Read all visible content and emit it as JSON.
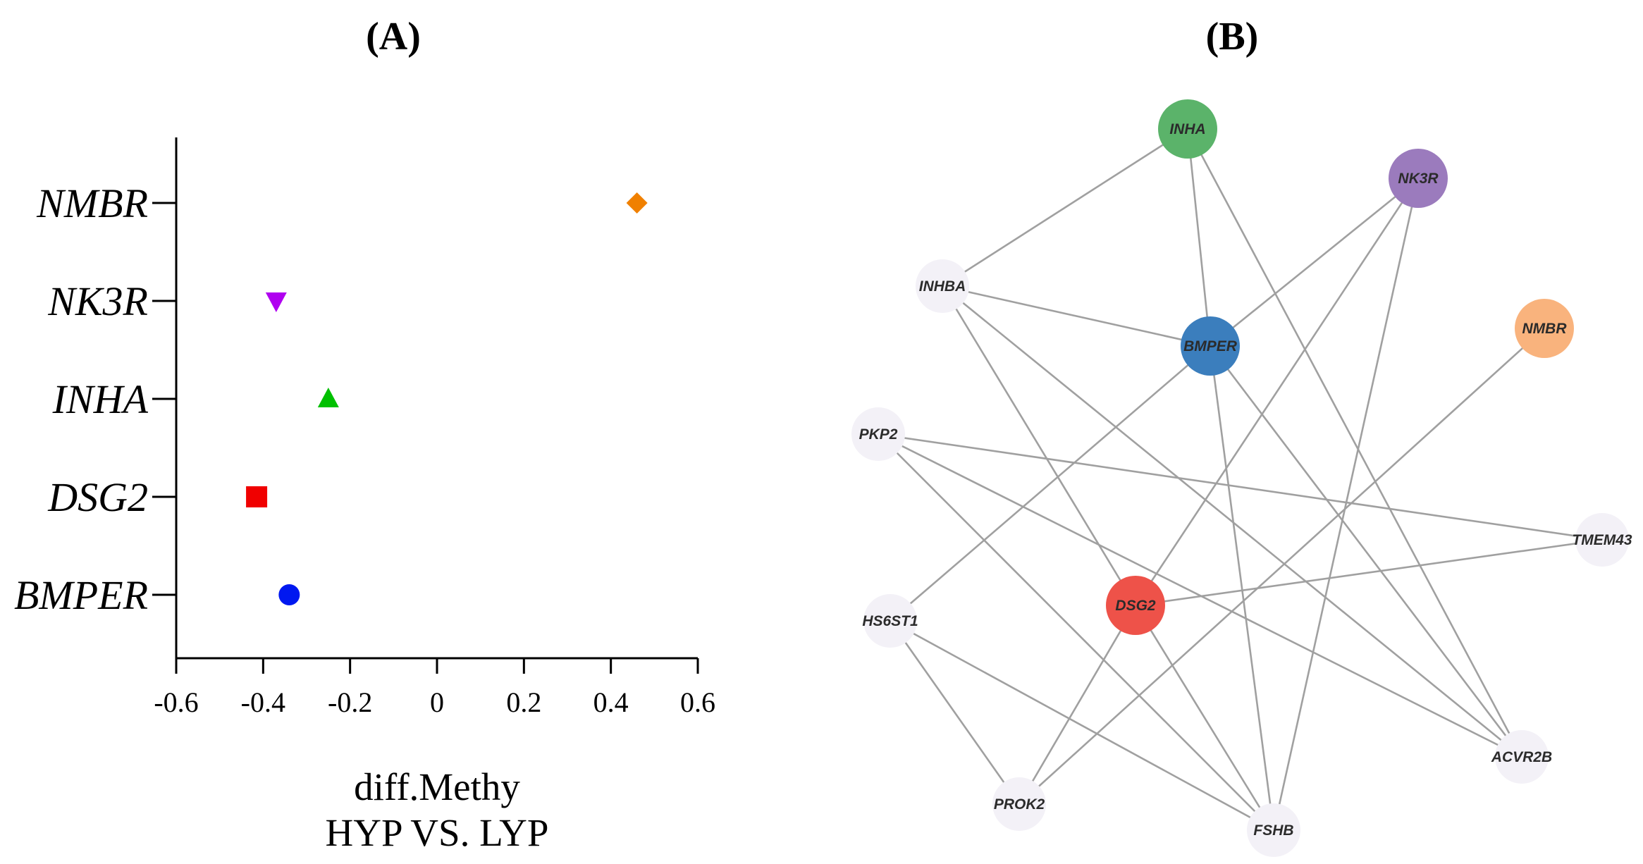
{
  "panel_a": {
    "label": "(A)"
  },
  "panel_b": {
    "label": "(B)"
  },
  "chart_data": [
    {
      "type": "scatter",
      "title": "",
      "categories": [
        "BMPER",
        "DSG2",
        "INHA",
        "NK3R",
        "NMBR"
      ],
      "values": [
        -0.34,
        -0.415,
        -0.25,
        -0.37,
        0.46
      ],
      "markers": [
        "circle",
        "square",
        "triangle-up",
        "triangle-down",
        "diamond"
      ],
      "colors": [
        "#0018f0",
        "#f00000",
        "#00c000",
        "#b000f0",
        "#f08000"
      ],
      "xlabel": "diff.Methy",
      "xlabel_line2": "HYP VS. LYP",
      "ylabel": "",
      "xlim": [
        -0.6,
        0.6
      ],
      "xticks": [
        "-0.6",
        "-0.4",
        "-0.2",
        "0",
        "0.2",
        "0.4",
        "0.6"
      ],
      "grid": false
    },
    {
      "type": "network",
      "nodes": [
        {
          "id": "INHA",
          "label": "INHA",
          "color": "#5bb36a",
          "highlight": true
        },
        {
          "id": "NK3R",
          "label": "NK3R",
          "color": "#9b7bbd",
          "highlight": true
        },
        {
          "id": "INHBA",
          "label": "INHBA",
          "color": "#f3f1f7",
          "highlight": false
        },
        {
          "id": "BMPER",
          "label": "BMPER",
          "color": "#3b7ebd",
          "highlight": true
        },
        {
          "id": "NMBR",
          "label": "NMBR",
          "color": "#f9b37d",
          "highlight": true
        },
        {
          "id": "PKP2",
          "label": "PKP2",
          "color": "#f3f1f7",
          "highlight": false
        },
        {
          "id": "TMEM43",
          "label": "TMEM43",
          "color": "#f3f1f7",
          "highlight": false
        },
        {
          "id": "HS6ST1",
          "label": "HS6ST1",
          "color": "#f3f1f7",
          "highlight": false
        },
        {
          "id": "DSG2",
          "label": "DSG2",
          "color": "#ee5249",
          "highlight": true
        },
        {
          "id": "ACVR2B",
          "label": "ACVR2B",
          "color": "#f3f1f7",
          "highlight": false
        },
        {
          "id": "PROK2",
          "label": "PROK2",
          "color": "#f3f1f7",
          "highlight": false
        },
        {
          "id": "FSHB",
          "label": "FSHB",
          "color": "#f3f1f7",
          "highlight": false
        }
      ],
      "edges": [
        [
          "INHA",
          "INHBA"
        ],
        [
          "INHA",
          "BMPER"
        ],
        [
          "INHA",
          "ACVR2B"
        ],
        [
          "INHBA",
          "BMPER"
        ],
        [
          "INHBA",
          "DSG2"
        ],
        [
          "INHBA",
          "ACVR2B"
        ],
        [
          "NK3R",
          "BMPER"
        ],
        [
          "NK3R",
          "DSG2"
        ],
        [
          "NK3R",
          "FSHB"
        ],
        [
          "BMPER",
          "HS6ST1"
        ],
        [
          "BMPER",
          "FSHB"
        ],
        [
          "BMPER",
          "ACVR2B"
        ],
        [
          "NMBR",
          "PROK2"
        ],
        [
          "PKP2",
          "TMEM43"
        ],
        [
          "PKP2",
          "FSHB"
        ],
        [
          "PKP2",
          "ACVR2B"
        ],
        [
          "DSG2",
          "TMEM43"
        ],
        [
          "DSG2",
          "PROK2"
        ],
        [
          "DSG2",
          "FSHB"
        ],
        [
          "HS6ST1",
          "PROK2"
        ],
        [
          "HS6ST1",
          "FSHB"
        ]
      ]
    }
  ]
}
